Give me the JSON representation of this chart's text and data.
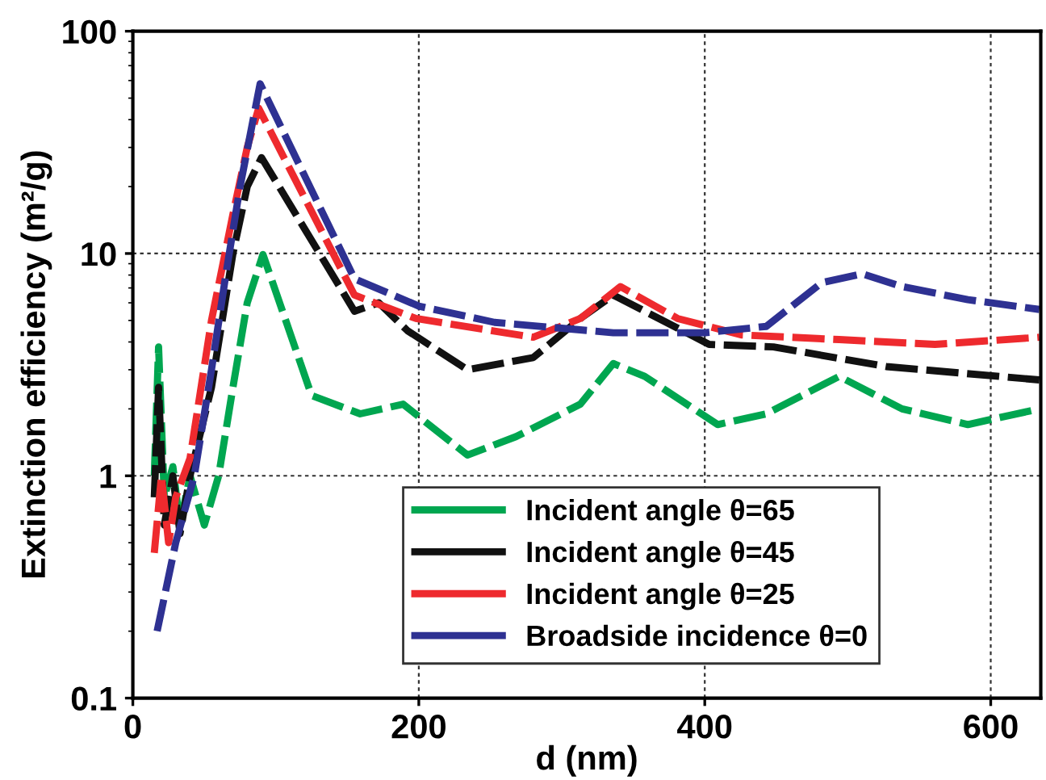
{
  "chart_data": {
    "type": "line",
    "xlabel": "d (nm)",
    "ylabel": "Extinction efficiency (m²/g)",
    "log": "y",
    "xlim": [
      0,
      635
    ],
    "ylim": [
      0.1,
      100
    ],
    "xticks": [
      0,
      200,
      400,
      600
    ],
    "yticks": [
      0.1,
      1,
      10,
      100
    ],
    "grid": true,
    "legend": "bottom",
    "line_style": "dashed",
    "marker": "none",
    "series": [
      {
        "name": "Incident angle θ=65",
        "color": "#00a650",
        "x": [
          15,
          18,
          22,
          28,
          33,
          40,
          50,
          60,
          70,
          80,
          91,
          125,
          159,
          189,
          234,
          268,
          313,
          336,
          358,
          409,
          443,
          494,
          538,
          584,
          634
        ],
        "values": [
          1.0,
          3.8,
          0.8,
          1.1,
          0.6,
          1.0,
          0.6,
          1.0,
          2.5,
          6,
          9.9,
          2.3,
          1.9,
          2.1,
          1.24,
          1.5,
          2.1,
          3.2,
          2.8,
          1.7,
          1.9,
          2.8,
          2.0,
          1.7,
          2.0
        ]
      },
      {
        "name": "Incident angle θ=45",
        "color": "#111111",
        "x": [
          15,
          18,
          22,
          28,
          33,
          40,
          55,
          70,
          80,
          90,
          155,
          172,
          192,
          234,
          280,
          313,
          336,
          358,
          403,
          448,
          527,
          634
        ],
        "values": [
          0.8,
          2.5,
          0.6,
          1.0,
          0.55,
          1.0,
          2.5,
          10,
          20,
          27,
          5.5,
          6,
          4.5,
          3.0,
          3.4,
          5.1,
          6.5,
          5.5,
          3.9,
          3.8,
          3.1,
          2.7
        ]
      },
      {
        "name": "Incident angle θ=25",
        "color": "#ee2a2e",
        "x": [
          15,
          20,
          25,
          30,
          40,
          55,
          70,
          80,
          88,
          155,
          198,
          280,
          313,
          341,
          381,
          426,
          494,
          561,
          634
        ],
        "values": [
          0.45,
          1.0,
          0.5,
          0.8,
          1.2,
          5,
          15,
          30,
          45,
          6.5,
          5.1,
          4.2,
          5.1,
          7.1,
          5.1,
          4.3,
          4.1,
          3.9,
          4.2
        ]
      },
      {
        "name": "Broadside incidence θ=0",
        "color": "#2e3192",
        "x": [
          17,
          30,
          43,
          55,
          65,
          75,
          89,
          155,
          200,
          253,
          336,
          400,
          443,
          482,
          510,
          538,
          584,
          634
        ],
        "values": [
          0.2,
          0.5,
          1.0,
          3,
          8,
          20,
          58,
          7.7,
          5.8,
          4.9,
          4.4,
          4.4,
          4.7,
          7.4,
          8.1,
          7.1,
          6.2,
          5.6
        ]
      }
    ]
  }
}
